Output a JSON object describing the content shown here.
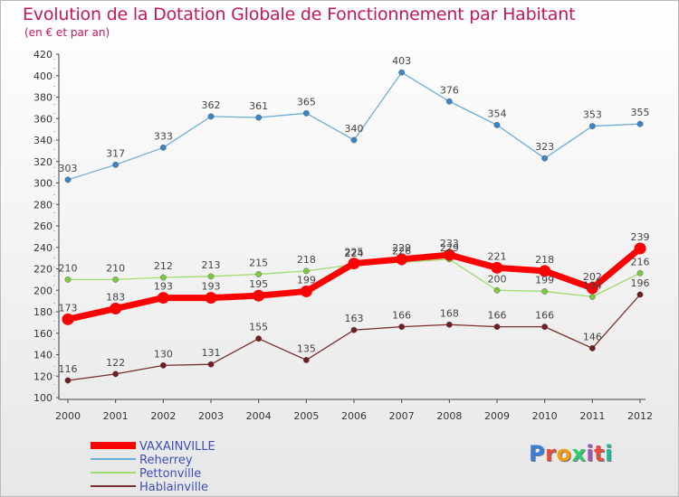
{
  "header": {
    "title": "Evolution de la Dotation Globale de Fonctionnement par Habitant",
    "subtitle": "(en € et par an)"
  },
  "logo": {
    "text": "Proxiti",
    "colors": [
      "#3a7fd6",
      "#e74c3c",
      "#f39c12",
      "#2ecc71",
      "#9b59b6",
      "#e74c3c",
      "#1abc9c"
    ]
  },
  "chart_data": {
    "type": "line",
    "x": [
      "2000",
      "2001",
      "2002",
      "2003",
      "2004",
      "2005",
      "2006",
      "2007",
      "2008",
      "2009",
      "2010",
      "2011",
      "2012"
    ],
    "ylim": [
      100,
      420
    ],
    "yticks": [
      100,
      120,
      140,
      160,
      180,
      200,
      220,
      240,
      260,
      280,
      300,
      320,
      340,
      360,
      380,
      400,
      420
    ],
    "grid": false,
    "legend_position": "bottom-left",
    "series": [
      {
        "name": "VAXAINVILLE",
        "color": "#ff0000",
        "width": 7,
        "marker": 6.5,
        "values": [
          173,
          183,
          193,
          193,
          195,
          199,
          225,
          229,
          233,
          221,
          218,
          202,
          239
        ]
      },
      {
        "name": "Reherrey",
        "color": "#6baed6",
        "width": 1.3,
        "marker": 3.2,
        "markerColor": "#3b84c8",
        "values": [
          303,
          317,
          333,
          362,
          361,
          365,
          340,
          403,
          376,
          354,
          323,
          353,
          355
        ]
      },
      {
        "name": "Pettonville",
        "color": "#9edc6f",
        "width": 1.3,
        "marker": 3.2,
        "markerColor": "#7cc743",
        "values": [
          210,
          210,
          212,
          213,
          215,
          218,
          224,
          226,
          229,
          200,
          199,
          194,
          216
        ]
      },
      {
        "name": "Hablainville",
        "color": "#7a2e2e",
        "width": 1.3,
        "marker": 3.2,
        "markerColor": "#6e1f1f",
        "values": [
          116,
          122,
          130,
          131,
          155,
          135,
          163,
          166,
          168,
          166,
          166,
          146,
          196
        ]
      }
    ]
  }
}
